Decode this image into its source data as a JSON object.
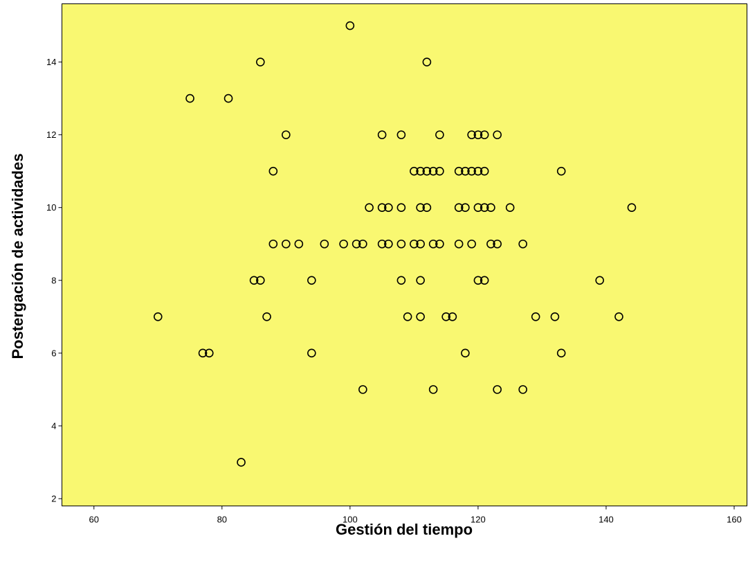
{
  "chart_data": {
    "type": "scatter",
    "xlabel": "Gestión del tiempo",
    "ylabel": "Postergación de actividades",
    "xlim": [
      55,
      162
    ],
    "ylim": [
      1.8,
      15.6
    ],
    "xticks": [
      60,
      80,
      100,
      120,
      140,
      160
    ],
    "yticks": [
      2,
      4,
      6,
      8,
      10,
      12,
      14
    ],
    "grid": false,
    "plot_background": "#f9f871",
    "marker_color": "#000000",
    "points": [
      [
        100,
        15
      ],
      [
        86,
        14
      ],
      [
        112,
        14
      ],
      [
        75,
        13
      ],
      [
        81,
        13
      ],
      [
        90,
        12
      ],
      [
        105,
        12
      ],
      [
        108,
        12
      ],
      [
        114,
        12
      ],
      [
        119,
        12
      ],
      [
        120,
        12
      ],
      [
        121,
        12
      ],
      [
        123,
        12
      ],
      [
        88,
        11
      ],
      [
        110,
        11
      ],
      [
        111,
        11
      ],
      [
        112,
        11
      ],
      [
        113,
        11
      ],
      [
        114,
        11
      ],
      [
        117,
        11
      ],
      [
        118,
        11
      ],
      [
        119,
        11
      ],
      [
        120,
        11
      ],
      [
        121,
        11
      ],
      [
        133,
        11
      ],
      [
        103,
        10
      ],
      [
        105,
        10
      ],
      [
        106,
        10
      ],
      [
        108,
        10
      ],
      [
        111,
        10
      ],
      [
        112,
        10
      ],
      [
        117,
        10
      ],
      [
        118,
        10
      ],
      [
        120,
        10
      ],
      [
        121,
        10
      ],
      [
        122,
        10
      ],
      [
        125,
        10
      ],
      [
        144,
        10
      ],
      [
        88,
        9
      ],
      [
        90,
        9
      ],
      [
        92,
        9
      ],
      [
        96,
        9
      ],
      [
        99,
        9
      ],
      [
        101,
        9
      ],
      [
        102,
        9
      ],
      [
        105,
        9
      ],
      [
        106,
        9
      ],
      [
        108,
        9
      ],
      [
        110,
        9
      ],
      [
        111,
        9
      ],
      [
        113,
        9
      ],
      [
        114,
        9
      ],
      [
        117,
        9
      ],
      [
        119,
        9
      ],
      [
        122,
        9
      ],
      [
        123,
        9
      ],
      [
        127,
        9
      ],
      [
        85,
        8
      ],
      [
        86,
        8
      ],
      [
        94,
        8
      ],
      [
        108,
        8
      ],
      [
        111,
        8
      ],
      [
        120,
        8
      ],
      [
        121,
        8
      ],
      [
        139,
        8
      ],
      [
        70,
        7
      ],
      [
        87,
        7
      ],
      [
        109,
        7
      ],
      [
        111,
        7
      ],
      [
        115,
        7
      ],
      [
        116,
        7
      ],
      [
        129,
        7
      ],
      [
        132,
        7
      ],
      [
        142,
        7
      ],
      [
        77,
        6
      ],
      [
        78,
        6
      ],
      [
        94,
        6
      ],
      [
        118,
        6
      ],
      [
        133,
        6
      ],
      [
        102,
        5
      ],
      [
        113,
        5
      ],
      [
        123,
        5
      ],
      [
        127,
        5
      ],
      [
        83,
        3
      ]
    ]
  }
}
